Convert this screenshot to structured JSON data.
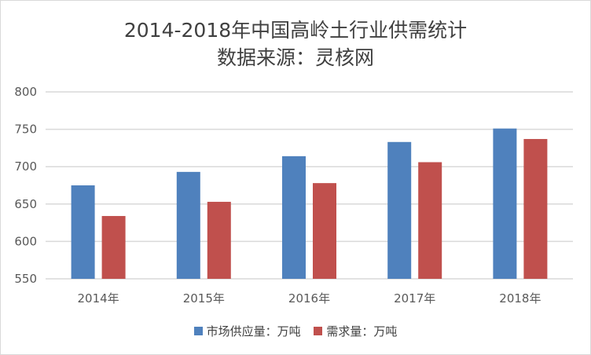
{
  "chart_data": {
    "type": "bar",
    "title": "2014-2018年中国高岭土行业供需统计",
    "subtitle": "数据来源：灵核网",
    "categories": [
      "2014年",
      "2015年",
      "2016年",
      "2017年",
      "2018年"
    ],
    "series": [
      {
        "name": "市场供应量：万吨",
        "color": "#4f81bd",
        "values": [
          675,
          693,
          714,
          733,
          751
        ]
      },
      {
        "name": "需求量：万吨",
        "color": "#c0504d",
        "values": [
          634,
          653,
          678,
          706,
          737
        ]
      }
    ],
    "ylim": [
      550,
      800
    ],
    "yticks": [
      550,
      600,
      650,
      700,
      750,
      800
    ],
    "grid": true,
    "legend": "bottom"
  }
}
